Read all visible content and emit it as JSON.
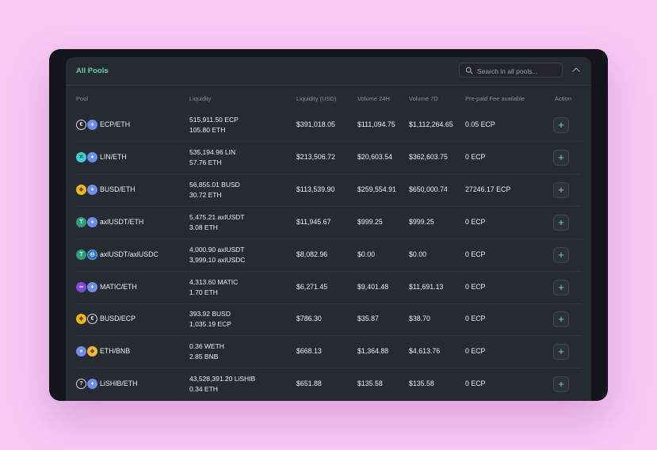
{
  "panel": {
    "title": "All Pools",
    "search_placeholder": "Search in all pools..."
  },
  "colors": {
    "accent": "#59d3a6",
    "background": "#f9c9f5",
    "panel": "#262a31"
  },
  "columns": [
    "Pool",
    "Liquidity",
    "Liquidity (USD)",
    "Volume 24H",
    "Volume 7D",
    "Pre-paid Fee available",
    "Action"
  ],
  "rows": [
    {
      "pool": "ECP/ETH",
      "icon_a": "ecp-icon",
      "icon_b": "eth-icon",
      "liq1": "515,911.50 ECP",
      "liq2": "105.80 ETH",
      "usd": "$391,018.05",
      "v24": "$111,094.75",
      "v7": "$1,112,264.65",
      "fee": "0.05 ECP",
      "action": "+"
    },
    {
      "pool": "LIN/ETH",
      "icon_a": "lin-icon",
      "icon_b": "eth-icon",
      "liq1": "535,194.96 LIN",
      "liq2": "57.76 ETH",
      "usd": "$213,506.72",
      "v24": "$20,603.54",
      "v7": "$362,603.75",
      "fee": "0 ECP",
      "action": "+"
    },
    {
      "pool": "BUSD/ETH",
      "icon_a": "busd-icon",
      "icon_b": "eth-icon",
      "liq1": "56,855.01 BUSD",
      "liq2": "30.72 ETH",
      "usd": "$113,539.90",
      "v24": "$259,554.91",
      "v7": "$650,000.74",
      "fee": "27246.17 ECP",
      "action": "+"
    },
    {
      "pool": "axlUSDT/ETH",
      "icon_a": "usdt-icon",
      "icon_b": "eth-icon",
      "liq1": "5,475.21 axlUSDT",
      "liq2": "3.08 ETH",
      "usd": "$11,945.67",
      "v24": "$999.25",
      "v7": "$999.25",
      "fee": "0 ECP",
      "action": "+"
    },
    {
      "pool": "axlUSDT/axlUSDC",
      "icon_a": "usdt-icon",
      "icon_b": "usdc-icon",
      "liq1": "4,000.90 axlUSDT",
      "liq2": "3,999.10 axlUSDC",
      "usd": "$8,082.96",
      "v24": "$0.00",
      "v7": "$0.00",
      "fee": "0 ECP",
      "action": "+"
    },
    {
      "pool": "MATIC/ETH",
      "icon_a": "matic-icon",
      "icon_b": "eth-icon",
      "liq1": "4,313.60 MATIC",
      "liq2": "1.70 ETH",
      "usd": "$6,271.45",
      "v24": "$9,401.48",
      "v7": "$11,691.13",
      "fee": "0 ECP",
      "action": "+"
    },
    {
      "pool": "BUSD/ECP",
      "icon_a": "busd-icon",
      "icon_b": "ecp-icon",
      "liq1": "393.92 BUSD",
      "liq2": "1,035.19 ECP",
      "usd": "$786.30",
      "v24": "$35.87",
      "v7": "$38.70",
      "fee": "0 ECP",
      "action": "+"
    },
    {
      "pool": "ETH/BNB",
      "icon_a": "eth-icon",
      "icon_b": "bnb-icon",
      "liq1": "0.36 WETH",
      "liq2": "2.85 BNB",
      "usd": "$668.13",
      "v24": "$1,364.88",
      "v7": "$4,613.76",
      "fee": "0 ECP",
      "action": "+"
    },
    {
      "pool": "LiSHIB/ETH",
      "icon_a": "unknown-token-icon",
      "icon_b": "eth-icon",
      "liq1": "43,528,391.20 LiSHIB",
      "liq2": "0.34 ETH",
      "usd": "$651.88",
      "v24": "$135.58",
      "v7": "$135.58",
      "fee": "0 ECP",
      "action": "+"
    }
  ]
}
